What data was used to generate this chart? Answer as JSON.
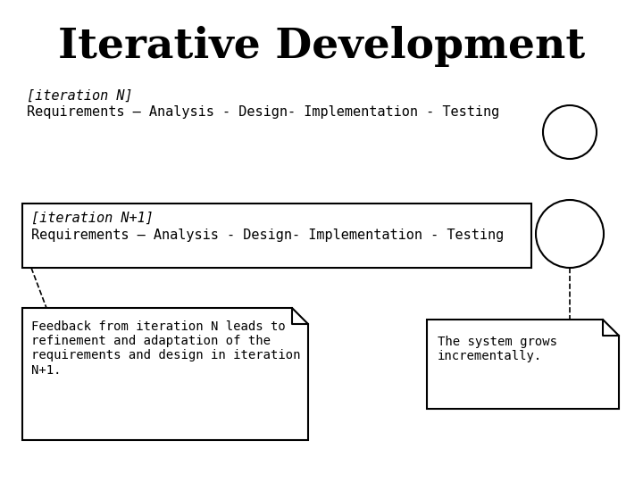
{
  "title": "Iterative Development",
  "title_fontsize": 34,
  "background_color": "#ffffff",
  "iteration_n_label": "[iteration N]",
  "iteration_n_text": "Requirements – Analysis - Design- Implementation - Testing",
  "iteration_n1_label": "[iteration N+1]",
  "iteration_n1_text": "Requirements – Analysis - Design- Implementation - Testing",
  "feedback_text": "Feedback from iteration N leads to\nrefinement and adaptation of the\nrequirements and design in iteration\nN+1.",
  "grows_text": "The system grows\nincrementally.",
  "text_fontsize": 11,
  "label_fontsize": 11
}
